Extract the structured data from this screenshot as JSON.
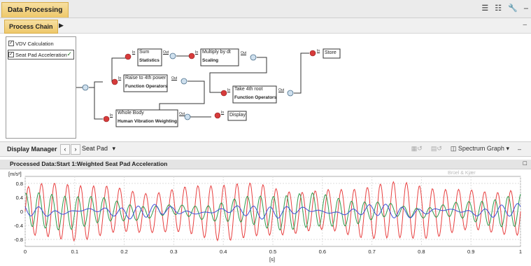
{
  "title_tab": "Data Processing",
  "chain_tab": "Process Chain",
  "list_items": [
    {
      "label": "VDV Calculation",
      "checked": true,
      "selected": false
    },
    {
      "label": "Seat Pad Acceleration",
      "checked": true,
      "selected": true
    }
  ],
  "nodes": {
    "sum": {
      "title": "Sum",
      "sub": "Statistics"
    },
    "multiply": {
      "title": "Multiply by dt",
      "sub": "Scaling"
    },
    "store": {
      "title": "Store"
    },
    "raise": {
      "title": "Raise to 4th power",
      "sub": "Function Operators"
    },
    "take4": {
      "title": "Take 4th root",
      "sub": "Function Operators"
    },
    "whole": {
      "title": "Whole Body",
      "sub": "Human Vibration Weighting"
    },
    "display": {
      "title": "Display"
    },
    "in_label": "In",
    "out_label": "Out"
  },
  "display_manager": {
    "title": "Display Manager",
    "dropdown": "Seat Pad",
    "spectrum": "Spectrum Graph"
  },
  "processed_title": "Processed Data:Start 1:Weighted Seat Pad Acceleration",
  "watermark": "Brüel & Kjær",
  "colors": {
    "red": "#e84040",
    "green": "#2e9a4a",
    "blue": "#3d4fd6",
    "accent": "#eec86a"
  },
  "chart_data": {
    "type": "line",
    "ylabel": "[m/s²]",
    "xlabel": "[s]",
    "xlim": [
      0,
      1
    ],
    "ylim": [
      -1.0,
      1.0
    ],
    "x_ticks": [
      "0",
      "0.1",
      "0.2",
      "0.3",
      "0.4",
      "0.5",
      "0.6",
      "0.7",
      "0.8",
      "0.9",
      "1"
    ],
    "y_ticks": [
      "0.8",
      "0.4",
      "0",
      "-0.4",
      "-0.8"
    ],
    "y_tick_values": [
      0.8,
      0.4,
      0,
      -0.4,
      -0.8
    ],
    "series": [
      {
        "color": "#e84040",
        "cycles": 38,
        "amplitude": 0.68,
        "mod_amp": 0.12,
        "mod_freq": 3,
        "x": [
          0,
          1
        ]
      },
      {
        "color": "#2e9a4a",
        "cycles": 38,
        "amplitude": 0.32,
        "mod_amp": 0.18,
        "mod_freq": 2,
        "x": [
          0,
          1
        ]
      },
      {
        "color": "#3d4fd6",
        "cycles": 30,
        "amplitude": 0.1,
        "mod_amp": 0.08,
        "mod_freq": 4,
        "x": [
          0,
          1
        ]
      }
    ]
  }
}
